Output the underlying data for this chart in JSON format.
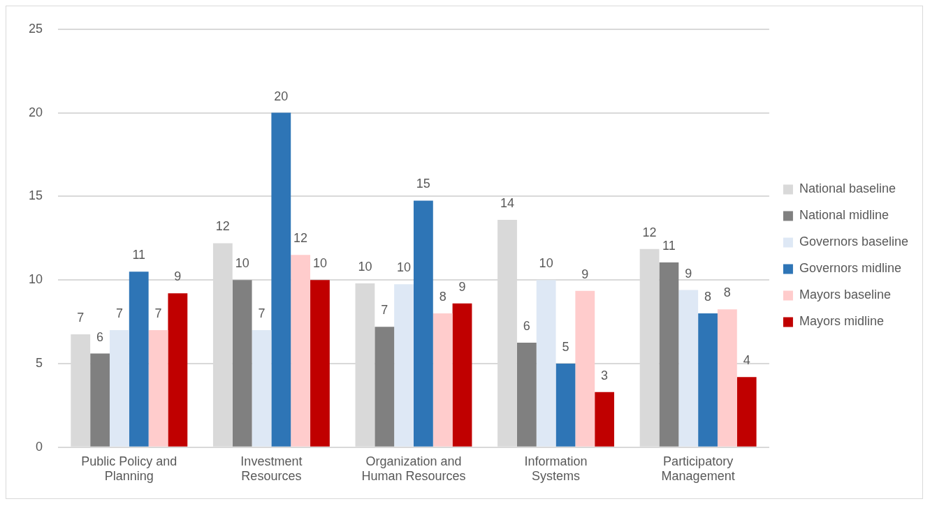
{
  "chart_data": {
    "type": "bar",
    "categories": [
      "Public Policy and Planning",
      "Investment Resources",
      "Organization and Human Resources",
      "Information Systems",
      "Participatory Management"
    ],
    "series": [
      {
        "name": "National baseline",
        "color": "#d9d9d9",
        "values": [
          6.75,
          12.2,
          9.8,
          13.6,
          11.85
        ],
        "value_labels": [
          "7",
          "12",
          "10",
          "14",
          "12"
        ]
      },
      {
        "name": "National midline",
        "color": "#808080",
        "values": [
          5.6,
          10.0,
          7.2,
          6.25,
          11.05
        ],
        "value_labels": [
          "6",
          "10",
          "7",
          "6",
          "11"
        ]
      },
      {
        "name": "Governors baseline",
        "color": "#dee8f5",
        "values": [
          7.0,
          7.0,
          9.75,
          10.0,
          9.4
        ],
        "value_labels": [
          "7",
          "7",
          "10",
          "10",
          "9"
        ]
      },
      {
        "name": "Governors midline",
        "color": "#2e75b6",
        "values": [
          10.5,
          20.0,
          14.75,
          5.0,
          8.0
        ],
        "value_labels": [
          "11",
          "20",
          "15",
          "5",
          "8"
        ]
      },
      {
        "name": "Mayors baseline",
        "color": "#ffcccc",
        "values": [
          7.0,
          11.5,
          8.0,
          9.35,
          8.25
        ],
        "value_labels": [
          "7",
          "12",
          "8",
          "9",
          "8"
        ]
      },
      {
        "name": "Mayors midline",
        "color": "#c00000",
        "values": [
          9.2,
          10.0,
          8.6,
          3.3,
          4.2
        ],
        "value_labels": [
          "9",
          "10",
          "9",
          "3",
          "4"
        ]
      }
    ],
    "ylim": [
      0,
      25
    ],
    "yticks": [
      0,
      5,
      10,
      15,
      20,
      25
    ],
    "grid": "y",
    "legend": "right"
  }
}
